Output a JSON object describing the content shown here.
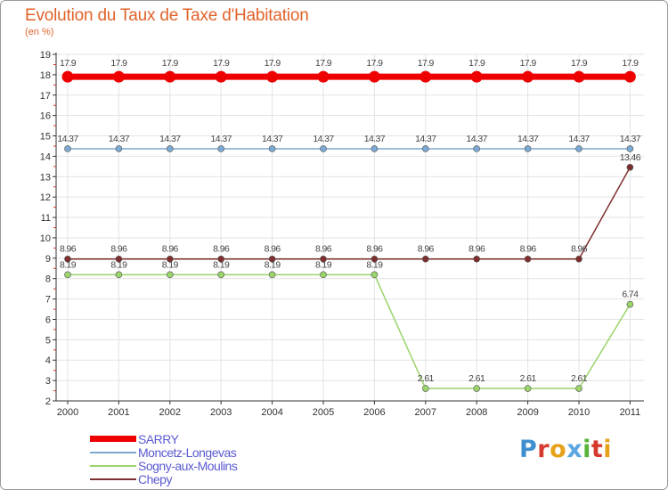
{
  "title": "Evolution du Taux de Taxe d'Habitation",
  "unit_label": "(en %)",
  "brand": {
    "text": "Proxiti",
    "letter_colors": [
      "#3f8fd0",
      "#d63a2f",
      "#e7a21c",
      "#5aa6e0",
      "#59b33a",
      "#d63a2f",
      "#e7a21c"
    ]
  },
  "chart_data": {
    "type": "line",
    "x": [
      "2000",
      "2001",
      "2002",
      "2003",
      "2004",
      "2005",
      "2006",
      "2007",
      "2008",
      "2009",
      "2010",
      "2011"
    ],
    "ylim": [
      2,
      19
    ],
    "yticks": [
      2,
      3,
      4,
      5,
      6,
      7,
      8,
      9,
      10,
      11,
      12,
      13,
      14,
      15,
      16,
      17,
      18,
      19
    ],
    "grid": true,
    "series": [
      {
        "name": "SARRY",
        "color": "#ee0000",
        "values": [
          17.9,
          17.9,
          17.9,
          17.9,
          17.9,
          17.9,
          17.9,
          17.9,
          17.9,
          17.9,
          17.9,
          17.9
        ],
        "labels": [
          "17.9",
          "17.9",
          "17.9",
          "17.9",
          "17.9",
          "17.9",
          "17.9",
          "17.9",
          "17.9",
          "17.9",
          "17.9",
          "17.9"
        ]
      },
      {
        "name": "Moncetz-Longevas",
        "color": "#7ba9d2",
        "values": [
          14.37,
          14.37,
          14.37,
          14.37,
          14.37,
          14.37,
          14.37,
          14.37,
          14.37,
          14.37,
          14.37,
          14.37
        ],
        "labels": [
          "14.37",
          "14.37",
          "14.37",
          "14.37",
          "14.37",
          "14.37",
          "14.37",
          "14.37",
          "14.37",
          "14.37",
          "14.37",
          "14.37"
        ]
      },
      {
        "name": "Sogny-aux-Moulins",
        "color": "#9ad46a",
        "values": [
          8.19,
          8.19,
          8.19,
          8.19,
          8.19,
          8.19,
          8.19,
          2.61,
          2.61,
          2.61,
          2.61,
          6.74
        ],
        "labels": [
          "8.19",
          "8.19",
          "8.19",
          "8.19",
          "8.19",
          "8.19",
          "8.19",
          "2.61",
          "2.61",
          "2.61",
          "2.61",
          "6.74"
        ]
      },
      {
        "name": "Chepy",
        "color": "#7d2f2f",
        "values": [
          8.96,
          8.96,
          8.96,
          8.96,
          8.96,
          8.96,
          8.96,
          8.96,
          8.96,
          8.96,
          8.96,
          13.46
        ],
        "labels": [
          "8.96",
          "8.96",
          "8.96",
          "8.96",
          "8.96",
          "8.96",
          "8.96",
          "8.96",
          "8.96",
          "8.96",
          "8.96",
          "13.46"
        ]
      }
    ]
  }
}
